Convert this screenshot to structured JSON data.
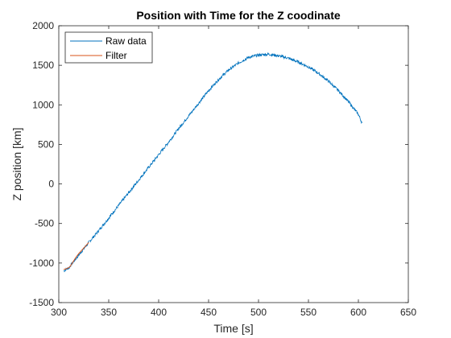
{
  "chart_data": {
    "type": "line",
    "title": "Position with Time for the Z coodinate",
    "xlabel": "Time [s]",
    "ylabel": "Z position [km]",
    "xlim": [
      300,
      650
    ],
    "ylim": [
      -1500,
      2000
    ],
    "xticks": [
      300,
      350,
      400,
      450,
      500,
      550,
      600,
      650
    ],
    "yticks": [
      -1500,
      -1000,
      -500,
      0,
      500,
      1000,
      1500,
      2000
    ],
    "grid": false,
    "legend_position": "top-left",
    "series": [
      {
        "name": "Raw data",
        "color": "#0072BD",
        "x": [
          305,
          310,
          315,
          320,
          325,
          330,
          340,
          350,
          360,
          370,
          380,
          390,
          400,
          410,
          420,
          430,
          440,
          450,
          460,
          470,
          480,
          490,
          500,
          510,
          520,
          530,
          540,
          550,
          560,
          570,
          580,
          590,
          600,
          604
        ],
        "y": [
          -1100,
          -1060,
          -980,
          -900,
          -820,
          -740,
          -590,
          -430,
          -270,
          -110,
          50,
          210,
          370,
          530,
          700,
          860,
          1020,
          1180,
          1320,
          1440,
          1530,
          1600,
          1630,
          1640,
          1620,
          1590,
          1540,
          1480,
          1400,
          1300,
          1180,
          1040,
          880,
          760
        ]
      },
      {
        "name": "Filter",
        "color": "#D95319",
        "x": [
          305,
          308,
          311,
          314,
          317,
          320,
          325,
          330
        ],
        "y": [
          -1080,
          -1070,
          -1050,
          -990,
          -930,
          -880,
          -810,
          -740
        ]
      }
    ]
  }
}
